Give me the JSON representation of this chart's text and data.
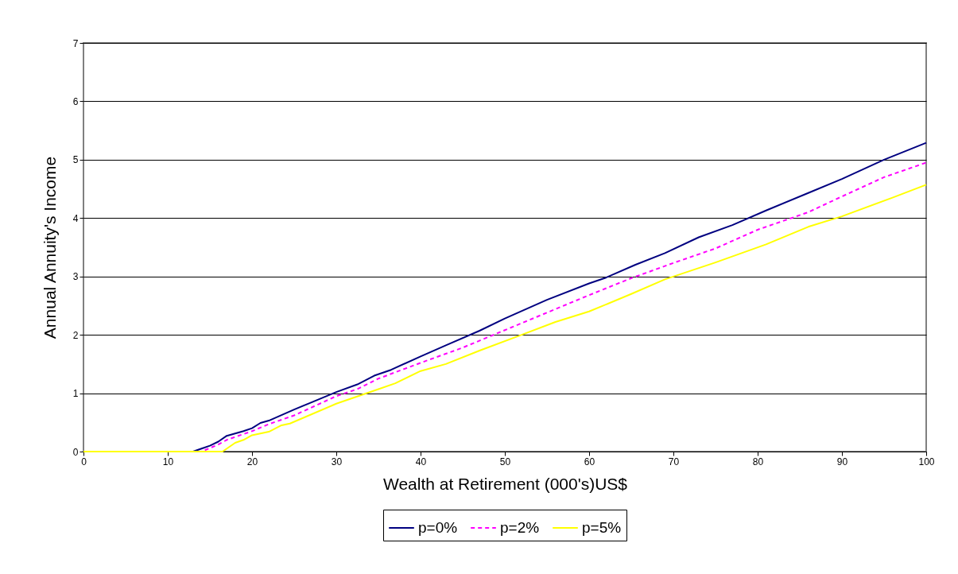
{
  "chart_data": {
    "type": "line",
    "xlabel": "Wealth at Retirement (000's)US$",
    "ylabel": "Annual Annuity's Income",
    "xlim": [
      0,
      100
    ],
    "xticks": [
      0,
      10,
      20,
      30,
      40,
      50,
      60,
      70,
      80,
      90,
      100
    ],
    "ylim": [
      0,
      7
    ],
    "yticks": [
      0,
      1,
      2,
      3,
      4,
      5,
      6,
      7
    ],
    "grid": "y",
    "legend": "bottom",
    "marker": "none",
    "series": [
      {
        "name": "p=0%",
        "color": "#000080",
        "line_style": "solid",
        "x": [
          0,
          13,
          15,
          16,
          17,
          19,
          20,
          21,
          22,
          25,
          27,
          30,
          32.5,
          34.5,
          36.5,
          40,
          43,
          47,
          50,
          55,
          60,
          62,
          65.5,
          69,
          73,
          77,
          81,
          86,
          90,
          95,
          100
        ],
        "values": [
          0,
          0,
          0.1,
          0.17,
          0.27,
          0.35,
          0.4,
          0.49,
          0.53,
          0.72,
          0.84,
          1.02,
          1.15,
          1.3,
          1.4,
          1.63,
          1.82,
          2.07,
          2.28,
          2.6,
          2.88,
          2.98,
          3.2,
          3.4,
          3.67,
          3.88,
          4.13,
          4.43,
          4.67,
          5.0,
          5.29
        ]
      },
      {
        "name": "p=2%",
        "color": "#ff00ff",
        "line_style": "dashed",
        "x": [
          0,
          14,
          16,
          17,
          20,
          22,
          25,
          30,
          32.5,
          35,
          40,
          45,
          50,
          55,
          60,
          65,
          70,
          75,
          80,
          86,
          90,
          95,
          100
        ],
        "values": [
          0,
          0,
          0.12,
          0.2,
          0.35,
          0.47,
          0.62,
          0.95,
          1.07,
          1.25,
          1.52,
          1.78,
          2.08,
          2.38,
          2.68,
          2.97,
          3.23,
          3.48,
          3.8,
          4.1,
          4.37,
          4.7,
          4.95
        ]
      },
      {
        "name": "p=5%",
        "color": "#ffff00",
        "line_style": "solid",
        "x": [
          0,
          16.5,
          18,
          19,
          20,
          22,
          23.5,
          24.5,
          30,
          35,
          37,
          40,
          43,
          47,
          52,
          56,
          60,
          65,
          69,
          75,
          81,
          86,
          90,
          96,
          100
        ],
        "values": [
          0,
          0,
          0.15,
          0.2,
          0.28,
          0.34,
          0.45,
          0.48,
          0.82,
          1.07,
          1.17,
          1.38,
          1.5,
          1.73,
          2.0,
          2.22,
          2.4,
          2.7,
          2.95,
          3.24,
          3.55,
          3.85,
          4.03,
          4.35,
          4.57
        ]
      }
    ]
  }
}
